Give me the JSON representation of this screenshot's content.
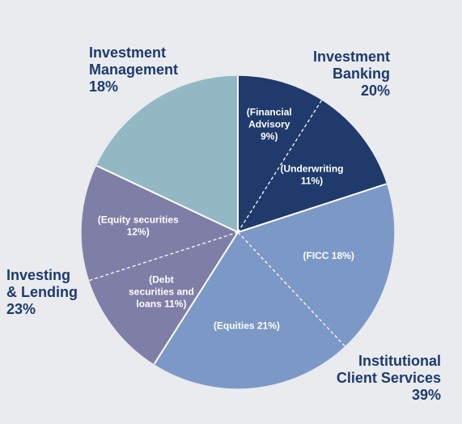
{
  "chart_data": {
    "type": "pie",
    "title": "",
    "groups": [
      {
        "name_lines": [
          "Investment",
          "Banking"
        ],
        "pct": "20%",
        "color": "#1f3a6b"
      },
      {
        "name_lines": [
          "Institutional",
          "Client Services"
        ],
        "pct": "39%",
        "color": "#7b98c7"
      },
      {
        "name_lines": [
          "Investing",
          "& Lending"
        ],
        "pct": "23%",
        "color": "#7f7ea7"
      },
      {
        "name_lines": [
          "Investment",
          "Management"
        ],
        "pct": "18%",
        "color": "#92b8c3"
      }
    ],
    "slices": [
      {
        "label_lines": [
          "(Financial",
          "Advisory",
          "9%)"
        ],
        "value": 9,
        "group": 0
      },
      {
        "label_lines": [
          "(Underwriting",
          "11%)"
        ],
        "value": 11,
        "group": 0
      },
      {
        "label_lines": [
          "(FICC 18%)"
        ],
        "value": 18,
        "group": 1
      },
      {
        "label_lines": [
          "(Equities 21%)"
        ],
        "value": 21,
        "group": 1
      },
      {
        "label_lines": [
          "(Debt",
          "securities and",
          "loans 11%)"
        ],
        "value": 11,
        "group": 2
      },
      {
        "label_lines": [
          "(Equity securities",
          "12%)"
        ],
        "value": 12,
        "group": 2
      },
      {
        "label_lines": [],
        "value": 18,
        "group": 3
      }
    ]
  }
}
